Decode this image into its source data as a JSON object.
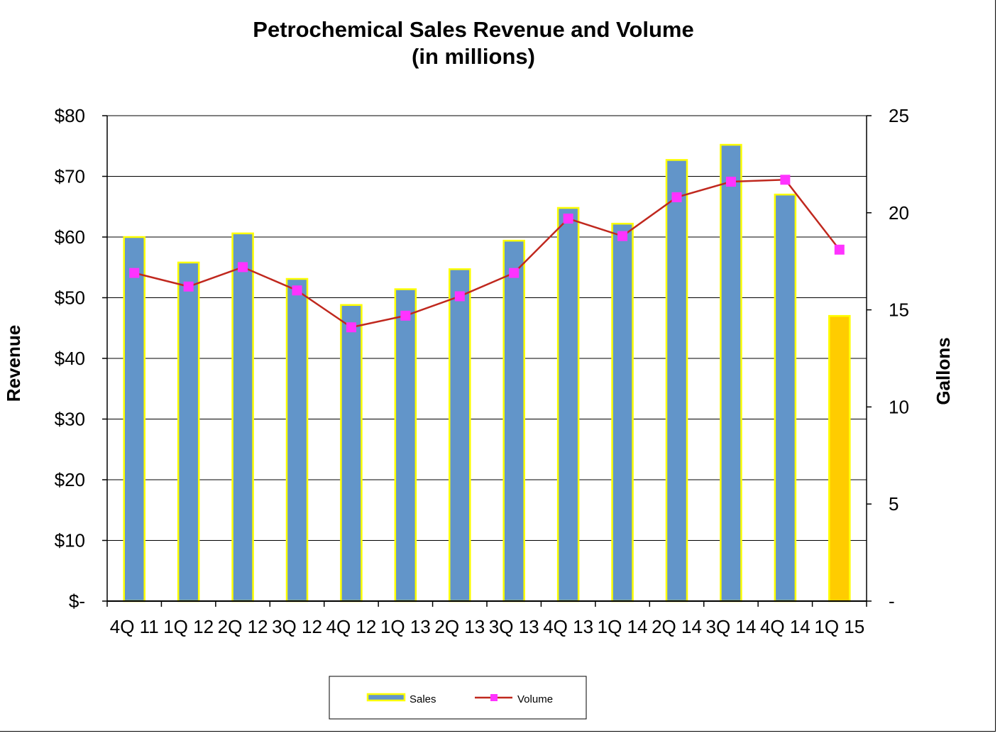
{
  "chart_data": {
    "type": "bar",
    "title": [
      "Petrochemical Sales Revenue and Volume",
      "(in millions)"
    ],
    "categories": [
      "4Q 11",
      "1Q 12",
      "2Q 12",
      "3Q 12",
      "4Q 12",
      "1Q 13",
      "2Q 13",
      "3Q 13",
      "4Q 13",
      "1Q 14",
      "2Q 14",
      "3Q 14",
      "4Q 14",
      "1Q 15"
    ],
    "x_tick_labels": [
      "4Q 11",
      "1Q 12",
      "2Q 12",
      "3Q 12",
      "4Q 12",
      "1Q 13",
      "2Q 13",
      "3Q 13",
      "4Q 13",
      "1Q 14",
      "2Q 14",
      "3Q 14",
      "4Q 14",
      "1Q 15"
    ],
    "series": [
      {
        "name": "Sales",
        "kind": "bar",
        "axis": "left",
        "values": [
          60,
          55.8,
          60.6,
          53.1,
          48.8,
          51.4,
          54.7,
          59.4,
          64.8,
          62.2,
          72.7,
          75.2,
          67,
          47
        ],
        "color": "#6295C9",
        "edge_color": "#FFFF00",
        "highlight_index": 13,
        "highlight_color": "#FFCC00"
      },
      {
        "name": "Volume",
        "kind": "line",
        "axis": "right",
        "values": [
          16.9,
          16.2,
          17.2,
          16.0,
          14.1,
          14.7,
          15.7,
          16.9,
          19.7,
          18.8,
          20.8,
          21.6,
          21.7,
          18.1
        ],
        "line_color": "#C0281E",
        "marker_color": "#FF33FF"
      }
    ],
    "ylabel": "Revenue",
    "y2label": "Gallons",
    "ylim": [
      0,
      80
    ],
    "y2lim": [
      0,
      25
    ],
    "y_ticks": [
      0,
      10,
      20,
      30,
      40,
      50,
      60,
      70,
      80
    ],
    "y_tick_labels": [
      "$-",
      "$10",
      "$20",
      "$30",
      "$40",
      "$50",
      "$60",
      "$70",
      "$80"
    ],
    "y2_ticks": [
      0,
      5,
      10,
      15,
      20,
      25
    ],
    "y2_tick_labels": [
      "-",
      "5",
      "10",
      "15",
      "20",
      "25"
    ],
    "grid": true,
    "legend_position": "bottom-center"
  }
}
